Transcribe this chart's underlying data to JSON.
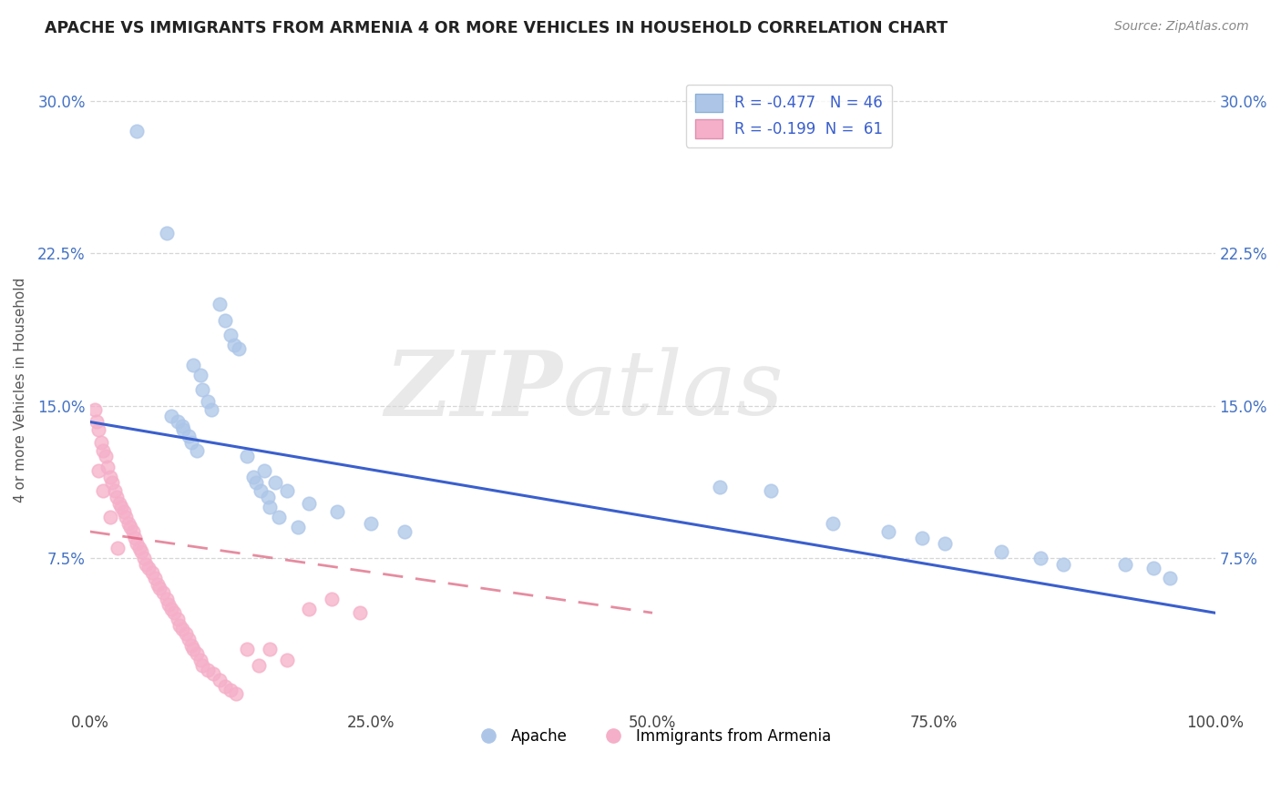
{
  "title": "APACHE VS IMMIGRANTS FROM ARMENIA 4 OR MORE VEHICLES IN HOUSEHOLD CORRELATION CHART",
  "source": "Source: ZipAtlas.com",
  "ylabel": "4 or more Vehicles in Household",
  "legend_apache": "Apache",
  "legend_armenia": "Immigrants from Armenia",
  "apache_R": -0.477,
  "apache_N": 46,
  "armenia_R": -0.199,
  "armenia_N": 61,
  "xlim": [
    0.0,
    1.0
  ],
  "ylim": [
    0.0,
    0.315
  ],
  "xticks": [
    0.0,
    0.25,
    0.5,
    0.75,
    1.0
  ],
  "xtick_labels": [
    "0.0%",
    "25.0%",
    "50.0%",
    "75.0%",
    "100.0%"
  ],
  "yticks": [
    0.075,
    0.15,
    0.225,
    0.3
  ],
  "ytick_labels": [
    "7.5%",
    "15.0%",
    "22.5%",
    "30.0%"
  ],
  "apache_color": "#adc6e8",
  "armenia_color": "#f5afc8",
  "apache_line_color": "#3a5fcd",
  "armenia_line_color": "#d94f6e",
  "watermark_zip": "ZIP",
  "watermark_atlas": "atlas",
  "apache_x": [
    0.042,
    0.068,
    0.115,
    0.12,
    0.125,
    0.128,
    0.132,
    0.092,
    0.098,
    0.1,
    0.105,
    0.108,
    0.082,
    0.088,
    0.14,
    0.155,
    0.165,
    0.175,
    0.195,
    0.22,
    0.25,
    0.28,
    0.56,
    0.605,
    0.66,
    0.71,
    0.74,
    0.76,
    0.81,
    0.845,
    0.865,
    0.92,
    0.945,
    0.96,
    0.072,
    0.078,
    0.083,
    0.09,
    0.095,
    0.145,
    0.148,
    0.152,
    0.158,
    0.16,
    0.168,
    0.185
  ],
  "apache_y": [
    0.285,
    0.235,
    0.2,
    0.192,
    0.185,
    0.18,
    0.178,
    0.17,
    0.165,
    0.158,
    0.152,
    0.148,
    0.14,
    0.135,
    0.125,
    0.118,
    0.112,
    0.108,
    0.102,
    0.098,
    0.092,
    0.088,
    0.11,
    0.108,
    0.092,
    0.088,
    0.085,
    0.082,
    0.078,
    0.075,
    0.072,
    0.072,
    0.07,
    0.065,
    0.145,
    0.142,
    0.138,
    0.132,
    0.128,
    0.115,
    0.112,
    0.108,
    0.105,
    0.1,
    0.095,
    0.09
  ],
  "armenia_x": [
    0.004,
    0.006,
    0.008,
    0.01,
    0.012,
    0.014,
    0.016,
    0.018,
    0.02,
    0.022,
    0.024,
    0.026,
    0.028,
    0.03,
    0.032,
    0.034,
    0.036,
    0.038,
    0.04,
    0.042,
    0.044,
    0.046,
    0.048,
    0.05,
    0.052,
    0.055,
    0.058,
    0.06,
    0.062,
    0.065,
    0.068,
    0.07,
    0.072,
    0.075,
    0.078,
    0.08,
    0.082,
    0.085,
    0.088,
    0.09,
    0.092,
    0.095,
    0.098,
    0.1,
    0.105,
    0.11,
    0.115,
    0.12,
    0.125,
    0.13,
    0.14,
    0.15,
    0.16,
    0.175,
    0.195,
    0.215,
    0.24,
    0.008,
    0.012,
    0.018,
    0.025
  ],
  "armenia_y": [
    0.148,
    0.142,
    0.138,
    0.132,
    0.128,
    0.125,
    0.12,
    0.115,
    0.112,
    0.108,
    0.105,
    0.102,
    0.1,
    0.098,
    0.095,
    0.092,
    0.09,
    0.088,
    0.085,
    0.082,
    0.08,
    0.078,
    0.075,
    0.072,
    0.07,
    0.068,
    0.065,
    0.062,
    0.06,
    0.058,
    0.055,
    0.052,
    0.05,
    0.048,
    0.045,
    0.042,
    0.04,
    0.038,
    0.035,
    0.032,
    0.03,
    0.028,
    0.025,
    0.022,
    0.02,
    0.018,
    0.015,
    0.012,
    0.01,
    0.008,
    0.03,
    0.022,
    0.03,
    0.025,
    0.05,
    0.055,
    0.048,
    0.118,
    0.108,
    0.095,
    0.08
  ],
  "apache_regline_x": [
    0.0,
    1.0
  ],
  "apache_regline_y": [
    0.142,
    0.048
  ],
  "armenia_regline_x": [
    0.0,
    0.5
  ],
  "armenia_regline_y": [
    0.088,
    0.048
  ]
}
